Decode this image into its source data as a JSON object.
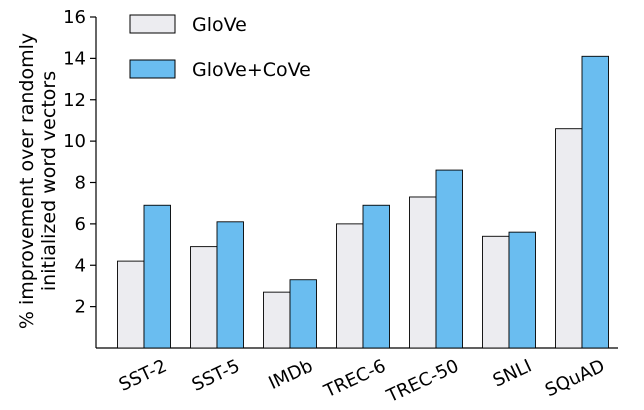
{
  "chart_data": {
    "type": "bar",
    "categories": [
      "SST-2",
      "SST-5",
      "IMDb",
      "TREC-6",
      "TREC-50",
      "SNLI",
      "SQuAD"
    ],
    "series": [
      {
        "name": "GloVe",
        "values": [
          4.2,
          4.9,
          2.7,
          6.0,
          7.3,
          5.4,
          10.6
        ],
        "color": "#ececf0"
      },
      {
        "name": "GloVe+CoVe",
        "values": [
          6.9,
          6.1,
          3.3,
          6.9,
          8.6,
          5.6,
          14.1
        ],
        "color": "#6abdf0"
      }
    ],
    "ylabel_lines": [
      "% improvement over randomly",
      "initialized word vectors"
    ],
    "ylim": [
      0,
      16
    ],
    "yticks": [
      2,
      4,
      6,
      8,
      10,
      12,
      14,
      16
    ],
    "legend": "top-left",
    "grid": false
  }
}
